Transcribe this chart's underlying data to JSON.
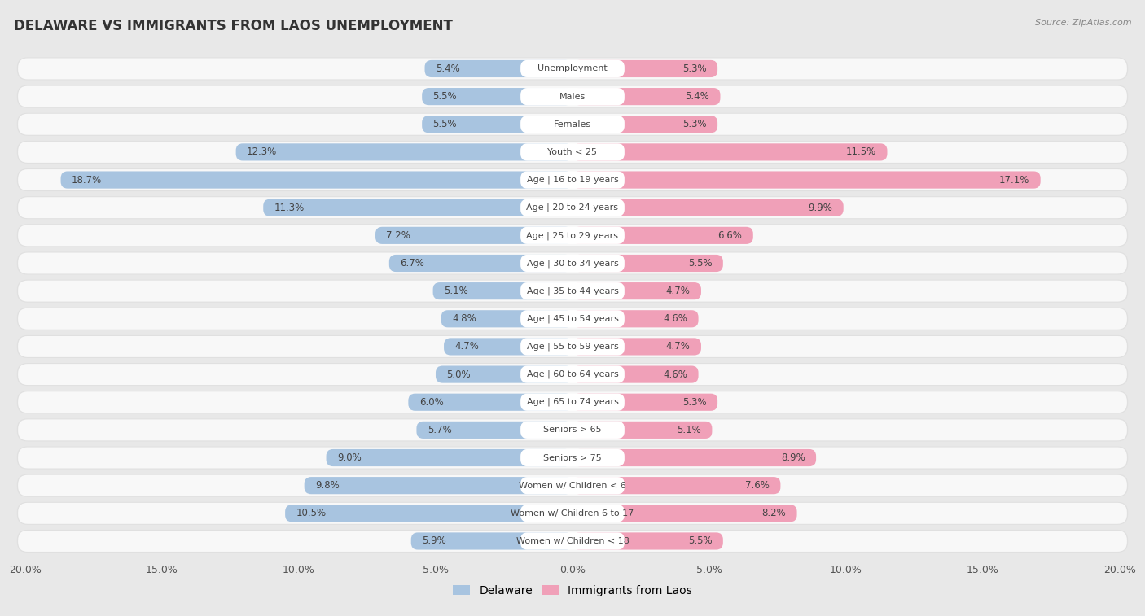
{
  "title": "DELAWARE VS IMMIGRANTS FROM LAOS UNEMPLOYMENT",
  "source": "Source: ZipAtlas.com",
  "categories": [
    "Unemployment",
    "Males",
    "Females",
    "Youth < 25",
    "Age | 16 to 19 years",
    "Age | 20 to 24 years",
    "Age | 25 to 29 years",
    "Age | 30 to 34 years",
    "Age | 35 to 44 years",
    "Age | 45 to 54 years",
    "Age | 55 to 59 years",
    "Age | 60 to 64 years",
    "Age | 65 to 74 years",
    "Seniors > 65",
    "Seniors > 75",
    "Women w/ Children < 6",
    "Women w/ Children 6 to 17",
    "Women w/ Children < 18"
  ],
  "delaware": [
    5.4,
    5.5,
    5.5,
    12.3,
    18.7,
    11.3,
    7.2,
    6.7,
    5.1,
    4.8,
    4.7,
    5.0,
    6.0,
    5.7,
    9.0,
    9.8,
    10.5,
    5.9
  ],
  "immigrants": [
    5.3,
    5.4,
    5.3,
    11.5,
    17.1,
    9.9,
    6.6,
    5.5,
    4.7,
    4.6,
    4.7,
    4.6,
    5.3,
    5.1,
    8.9,
    7.6,
    8.2,
    5.5
  ],
  "delaware_color": "#a8c4e0",
  "immigrants_color": "#f0a0b8",
  "background_color": "#e8e8e8",
  "row_bg_color": "#f5f5f5",
  "row_bg_outer": "#e0e0e0",
  "axis_max": 20.0,
  "legend_delaware": "Delaware",
  "legend_immigrants": "Immigrants from Laos"
}
